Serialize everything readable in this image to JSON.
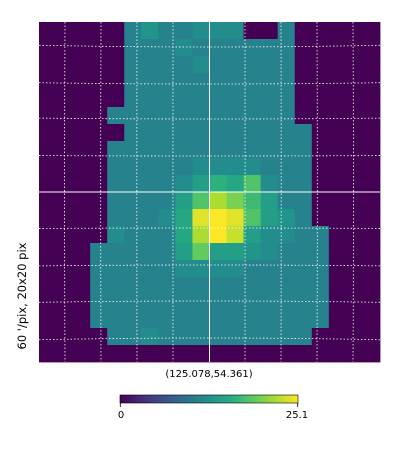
{
  "chart_data": {
    "type": "heatmap",
    "ylabel": "60 '/pix,   20x20 pix",
    "center_label": "(125.078,54.361)",
    "colormap": "viridis",
    "colorbar": {
      "min_label": "0",
      "max_label": "25.1",
      "vmin": 0,
      "vmax": 25.1
    },
    "grid": true,
    "crosshair": true,
    "values": [
      [
        0,
        0,
        0,
        0,
        0,
        11,
        13,
        11,
        11,
        12,
        12,
        12,
        0,
        0,
        11,
        0,
        0,
        0,
        0,
        0
      ],
      [
        0,
        0,
        0,
        0,
        0,
        11,
        11,
        11,
        12,
        11,
        11,
        11,
        11,
        11,
        11,
        0,
        0,
        0,
        0,
        0
      ],
      [
        0,
        0,
        0,
        0,
        0,
        11,
        11,
        11,
        11,
        12,
        11,
        11,
        11,
        11,
        11,
        0,
        0,
        0,
        0,
        0
      ],
      [
        0,
        0,
        0,
        0,
        0,
        11,
        11,
        11,
        11,
        11,
        11,
        11,
        11,
        11,
        11,
        0,
        0,
        0,
        0,
        0
      ],
      [
        0,
        0,
        0,
        0,
        0,
        11,
        11,
        11,
        11,
        11,
        11,
        11,
        11,
        11,
        11,
        0,
        0,
        0,
        0,
        0
      ],
      [
        0,
        0,
        0,
        0,
        11,
        11,
        11,
        11,
        11,
        11,
        11,
        11,
        11,
        11,
        11,
        0,
        0,
        0,
        0,
        0
      ],
      [
        0,
        0,
        0,
        0,
        0,
        11,
        11,
        11,
        11,
        11,
        11,
        11,
        11,
        11,
        11,
        11,
        0,
        0,
        0,
        0
      ],
      [
        0,
        0,
        0,
        0,
        11,
        11,
        11,
        11,
        11,
        11,
        11,
        11,
        11,
        11,
        11,
        11,
        0,
        0,
        0,
        0
      ],
      [
        0,
        0,
        0,
        0,
        11,
        11,
        11,
        11,
        11,
        12,
        12,
        12,
        12,
        11,
        11,
        11,
        0,
        0,
        0,
        0
      ],
      [
        0,
        0,
        0,
        0,
        11,
        11,
        11,
        11,
        12,
        14,
        16,
        15,
        18,
        12,
        11,
        11,
        0,
        0,
        0,
        0
      ],
      [
        0,
        0,
        0,
        0,
        11,
        11,
        11,
        11,
        14,
        18,
        22,
        20,
        17,
        14,
        11,
        11,
        0,
        0,
        0,
        0
      ],
      [
        0,
        0,
        0,
        0,
        11,
        11,
        11,
        12,
        15,
        24,
        25,
        24,
        18,
        14,
        13,
        11,
        0,
        0,
        0,
        0
      ],
      [
        0,
        0,
        0,
        0,
        12,
        11,
        11,
        11,
        15,
        22,
        25,
        23,
        14,
        12,
        12,
        11,
        11,
        0,
        0,
        0
      ],
      [
        0,
        0,
        0,
        11,
        11,
        11,
        11,
        11,
        14,
        19,
        14,
        14,
        13,
        12,
        11,
        11,
        11,
        0,
        0,
        0
      ],
      [
        0,
        0,
        0,
        11,
        11,
        11,
        11,
        11,
        12,
        12,
        12,
        12,
        11,
        11,
        11,
        11,
        11,
        0,
        0,
        0
      ],
      [
        0,
        0,
        0,
        11,
        11,
        11,
        11,
        11,
        11,
        11,
        11,
        11,
        11,
        11,
        11,
        11,
        11,
        0,
        0,
        0
      ],
      [
        0,
        0,
        0,
        11,
        11,
        11,
        11,
        11,
        11,
        11,
        11,
        11,
        11,
        11,
        11,
        11,
        11,
        0,
        0,
        0
      ],
      [
        0,
        0,
        0,
        11,
        11,
        11,
        11,
        11,
        11,
        11,
        11,
        11,
        11,
        11,
        11,
        11,
        11,
        0,
        0,
        0
      ],
      [
        0,
        0,
        0,
        0,
        11,
        11,
        12,
        11,
        11,
        11,
        11,
        11,
        11,
        11,
        11,
        11,
        0,
        0,
        0,
        0
      ],
      [
        0,
        0,
        0,
        0,
        0,
        0,
        0,
        0,
        0,
        0,
        0,
        0,
        0,
        0,
        0,
        0,
        0,
        0,
        0,
        0
      ]
    ]
  }
}
